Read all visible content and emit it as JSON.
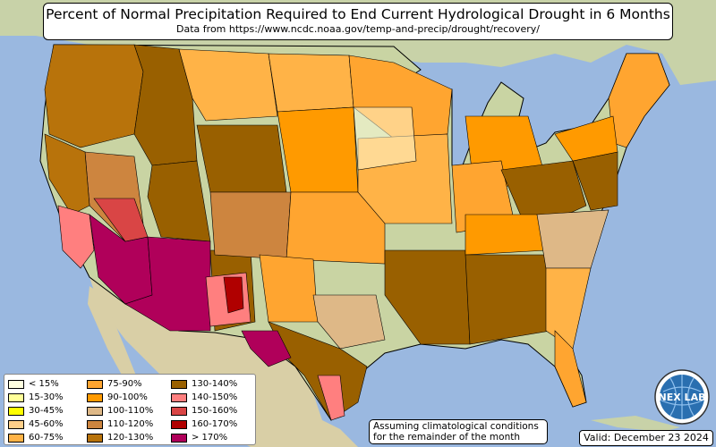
{
  "title": "Percent of Normal Precipitation Required to End Current Hydrological Drought in 6 Months",
  "subtitle": "Data from https://www.ncdc.noaa.gov/temp-and-precip/drought/recovery/",
  "note": "Assuming climatological conditions for the remainder of the month",
  "valid": "Valid: December 23 2024",
  "logo_text": "NEX LAB",
  "colors": {
    "ocean": "#9ab8e0",
    "land": "#c9d4a3",
    "border": "#000000"
  },
  "legend": [
    {
      "label": "< 15%",
      "color": "#ffffe0"
    },
    {
      "label": "15-30%",
      "color": "#ffff99"
    },
    {
      "label": "30-45%",
      "color": "#ffff00"
    },
    {
      "label": "45-60%",
      "color": "#ffd08a"
    },
    {
      "label": "60-75%",
      "color": "#ffb347"
    },
    {
      "label": "75-90%",
      "color": "#ffa530"
    },
    {
      "label": "90-100%",
      "color": "#ff9a00"
    },
    {
      "label": "100-110%",
      "color": "#deb887"
    },
    {
      "label": "110-120%",
      "color": "#cd853f"
    },
    {
      "label": "120-130%",
      "color": "#b8730b"
    },
    {
      "label": "130-140%",
      "color": "#996000"
    },
    {
      "label": "140-150%",
      "color": "#ff7f7f"
    },
    {
      "label": "150-160%",
      "color": "#d94545"
    },
    {
      "label": "160-170%",
      "color": "#b00000"
    },
    {
      "label": "> 170%",
      "color": "#b0005a"
    }
  ]
}
